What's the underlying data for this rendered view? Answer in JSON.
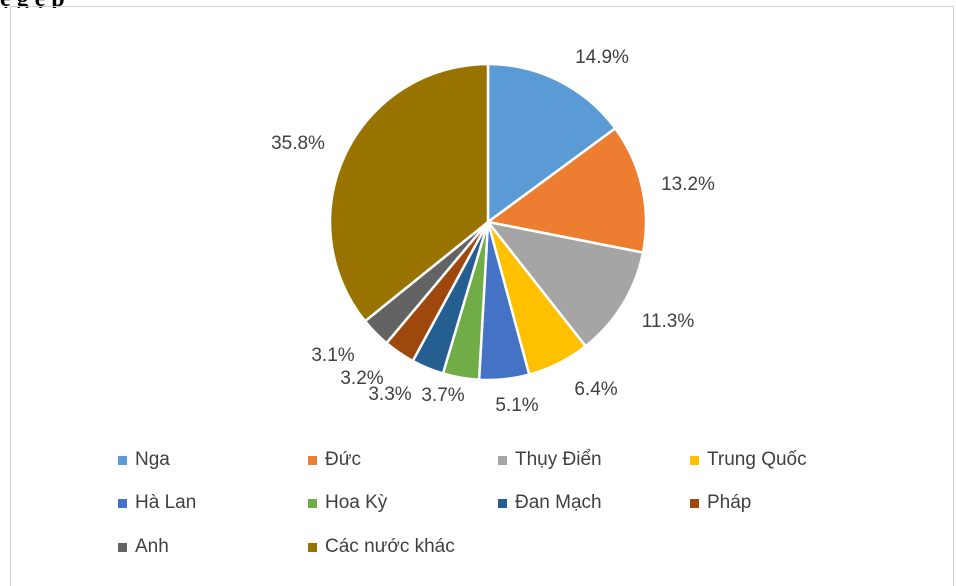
{
  "caption": "ệ  g ệ p",
  "chart_data": {
    "type": "pie",
    "title": "",
    "slices": [
      {
        "name": "Nga",
        "value": 14.9,
        "label": "14.9%",
        "color": "#5b9bd5"
      },
      {
        "name": "Đức",
        "value": 13.2,
        "label": "13.2%",
        "color": "#ed7d31"
      },
      {
        "name": "Thụy Điển",
        "value": 11.3,
        "label": "11.3%",
        "color": "#a5a5a5"
      },
      {
        "name": "Trung Quốc",
        "value": 6.4,
        "label": "6.4%",
        "color": "#ffc000"
      },
      {
        "name": "Hà Lan",
        "value": 5.1,
        "label": "5.1%",
        "color": "#4472c4"
      },
      {
        "name": "Hoa Kỳ",
        "value": 3.7,
        "label": "3.7%",
        "color": "#70ad47"
      },
      {
        "name": "Đan Mạch",
        "value": 3.3,
        "label": "3.3%",
        "color": "#255e91"
      },
      {
        "name": "Pháp",
        "value": 3.2,
        "label": "3.2%",
        "color": "#9e480e"
      },
      {
        "name": "Anh",
        "value": 3.1,
        "label": "3.1%",
        "color": "#636363"
      },
      {
        "name": "Các nước khác",
        "value": 35.8,
        "label": "35.8%",
        "color": "#997300"
      }
    ],
    "legend_position": "bottom"
  }
}
